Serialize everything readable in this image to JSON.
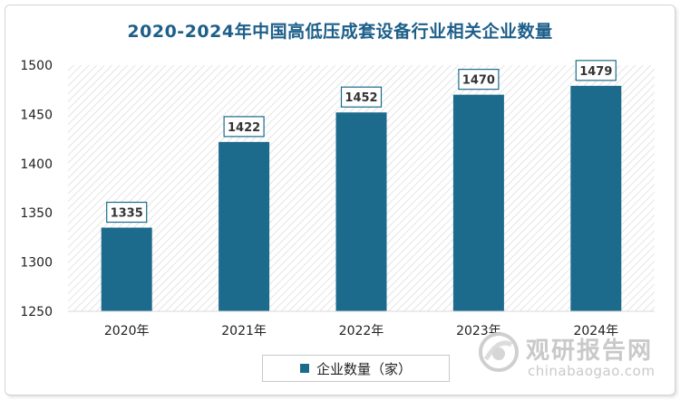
{
  "chart_data": {
    "type": "bar",
    "title": "2020-2024年中国高低压成套设备行业相关企业数量",
    "categories": [
      "2020年",
      "2021年",
      "2022年",
      "2023年",
      "2024年"
    ],
    "series": [
      {
        "name": "企业数量（家）",
        "values": [
          1335,
          1422,
          1452,
          1470,
          1479
        ]
      }
    ],
    "ylim": [
      1250,
      1500
    ],
    "yticks": [
      1250,
      1300,
      1350,
      1400,
      1450,
      1500
    ],
    "grid": false,
    "legend_position": "bottom",
    "bar_color": "#1d6b8c"
  },
  "watermark": {
    "brand_cn": "观研报告网",
    "brand_en": "chinabaogao.com"
  }
}
